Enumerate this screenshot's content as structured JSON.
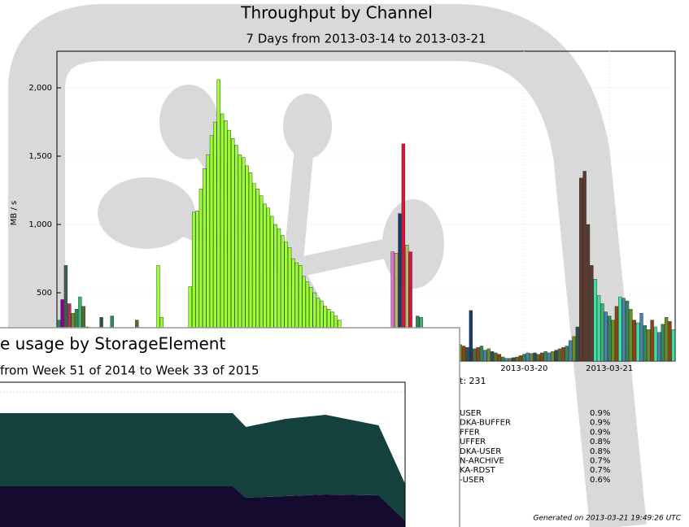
{
  "chart_data": [
    {
      "type": "bar",
      "title": "Throughput by Channel",
      "subtitle": "7 Days from 2013-03-14 to 2013-03-21",
      "y_label": "MB / s",
      "xlim": [
        12.5,
        186.5
      ],
      "xticks": [
        {
          "value": 144,
          "label": "2013-03-20"
        },
        {
          "value": 168,
          "label": "2013-03-21"
        }
      ],
      "ylim": [
        0,
        2268
      ],
      "yticks": [
        500,
        {
          "value": 1000,
          "label": "1,000"
        },
        {
          "value": 1500,
          "label": "1,500"
        },
        {
          "value": 2000,
          "label": "2,000"
        }
      ],
      "grid": true,
      "series": [
        {
          "color": "#99ff33",
          "x": [
            50,
            51,
            52,
            53,
            54,
            55,
            56,
            57,
            58,
            59,
            60,
            61,
            62,
            63,
            64,
            65,
            66,
            67,
            68,
            69,
            70,
            71,
            72,
            73,
            74,
            75,
            76,
            77,
            78,
            79,
            80,
            81,
            82,
            83,
            84,
            85,
            86,
            87,
            88,
            89,
            90,
            91,
            92
          ],
          "values": [
            545,
            1090,
            1100,
            1260,
            1410,
            1510,
            1650,
            1750,
            2060,
            1810,
            1760,
            1690,
            1630,
            1580,
            1510,
            1490,
            1430,
            1380,
            1300,
            1260,
            1210,
            1150,
            1120,
            1060,
            1000,
            970,
            920,
            870,
            830,
            750,
            720,
            700,
            620,
            580,
            540,
            500,
            460,
            440,
            400,
            380,
            360,
            330,
            300
          ]
        },
        {
          "x": [
            13,
            14,
            15,
            16,
            17,
            18,
            19,
            20,
            21,
            25,
            28,
            35,
            41,
            42,
            107,
            108,
            109,
            110,
            111,
            112,
            114,
            115,
            126,
            127,
            128,
            129,
            130,
            131,
            132,
            133,
            134,
            135,
            136,
            137,
            138,
            139,
            140,
            141,
            142,
            143,
            144,
            145,
            146,
            147,
            148,
            149,
            150,
            151,
            152,
            153,
            154,
            155,
            156,
            157,
            158,
            159,
            160,
            161,
            162,
            163,
            164,
            165,
            166,
            167,
            168,
            169,
            170,
            171,
            172,
            173,
            174,
            175,
            176,
            177,
            178,
            179,
            180,
            181,
            182,
            183,
            184,
            185,
            186
          ],
          "values": [
            300,
            450,
            700,
            420,
            350,
            380,
            470,
            400,
            250,
            320,
            330,
            300,
            700,
            320,
            800,
            790,
            1080,
            1590,
            850,
            800,
            330,
            320,
            120,
            110,
            100,
            370,
            90,
            100,
            110,
            80,
            90,
            70,
            60,
            50,
            30,
            20,
            20,
            25,
            30,
            40,
            50,
            60,
            55,
            60,
            50,
            60,
            70,
            60,
            70,
            80,
            90,
            100,
            110,
            150,
            180,
            250,
            1340,
            1390,
            1000,
            700,
            600,
            480,
            420,
            360,
            330,
            300,
            400,
            470,
            460,
            440,
            380,
            300,
            280,
            350,
            260,
            230,
            300,
            250,
            210,
            270,
            320,
            290,
            230
          ],
          "colors": [
            "#2e8b57",
            "#8b008b",
            "#3a5f4f",
            "#b03060",
            "#6b8e23",
            "#2e8b57",
            "#3cb371",
            "#556b2f",
            "#228b22",
            "#2f4f4f",
            "#2e8b57",
            "#556b2f",
            "#99ff33",
            "#99ff33",
            "#da70d6",
            "#bdb76b",
            "#1a3a6b",
            "#dc143c",
            "#bdb76b",
            "#dc143c",
            "#2e8b57",
            "#3cb371",
            "#6b8e23",
            "#8b4513",
            "#2f4f4f",
            "#1a3a6b",
            "#556b2f",
            "#8b4513",
            "#2e8b57",
            "#4682b4",
            "#6b8e23",
            "#2f4f4f",
            "#556b2f",
            "#8b4513",
            "#2e8b57",
            "#4682b4",
            "#6b8e23",
            "#2f4f4f",
            "#556b2f",
            "#8b4513",
            "#2e8b57",
            "#4682b4",
            "#6b8e23",
            "#2f4f4f",
            "#556b2f",
            "#8b4513",
            "#2e8b57",
            "#4682b4",
            "#6b8e23",
            "#2f4f4f",
            "#556b2f",
            "#8b4513",
            "#2e8b57",
            "#4682b4",
            "#6b8e23",
            "#2f4f4f",
            "#5c3a2e",
            "#5c3a2e",
            "#5c3a2e",
            "#5c3a2e",
            "#40e0a0",
            "#40e0a0",
            "#3cb371",
            "#4682b4",
            "#2e8b57",
            "#6b8e23",
            "#8b4513",
            "#40e0a0",
            "#4682b4",
            "#2e8b57",
            "#6b8e23",
            "#8b4513",
            "#40e0a0",
            "#4682b4",
            "#2e8b57",
            "#6b8e23",
            "#8b4513",
            "#40e0a0",
            "#4682b4",
            "#2e8b57",
            "#6b8e23",
            "#8b4513",
            "#40e0a0"
          ]
        }
      ],
      "legend_header": "t: 231",
      "legend": [
        {
          "label": "USER",
          "share": "0.9%"
        },
        {
          "label": "DKA-BUFFER",
          "share": "0.9%"
        },
        {
          "label": "FFER",
          "share": "0.9%"
        },
        {
          "label": "UFFER",
          "share": "0.8%"
        },
        {
          "label": "DKA-USER",
          "share": "0.8%"
        },
        {
          "label": "N-ARCHIVE",
          "share": "0.7%"
        },
        {
          "label": "KA-RDST",
          "share": "0.7%"
        },
        {
          "label": "-USER",
          "share": "0.6%"
        }
      ],
      "footer": "Generated on 2013-03-21 19:49:26 UTC"
    },
    {
      "type": "area",
      "title": "e usage by StorageElement",
      "subtitle": "from Week 51 of 2014 to Week 33 of 2015",
      "stacked": true,
      "xlim": [
        0,
        33
      ],
      "ylim": [
        0,
        180
      ],
      "x": [
        0,
        20,
        21,
        24,
        27,
        31,
        33
      ],
      "series": [
        {
          "color": "#150b2e",
          "values": [
            52,
            52,
            38,
            40,
            42,
            41,
            10
          ]
        },
        {
          "color": "#14413e",
          "values": [
            90,
            90,
            87,
            95,
            98,
            86,
            45
          ]
        }
      ]
    }
  ]
}
